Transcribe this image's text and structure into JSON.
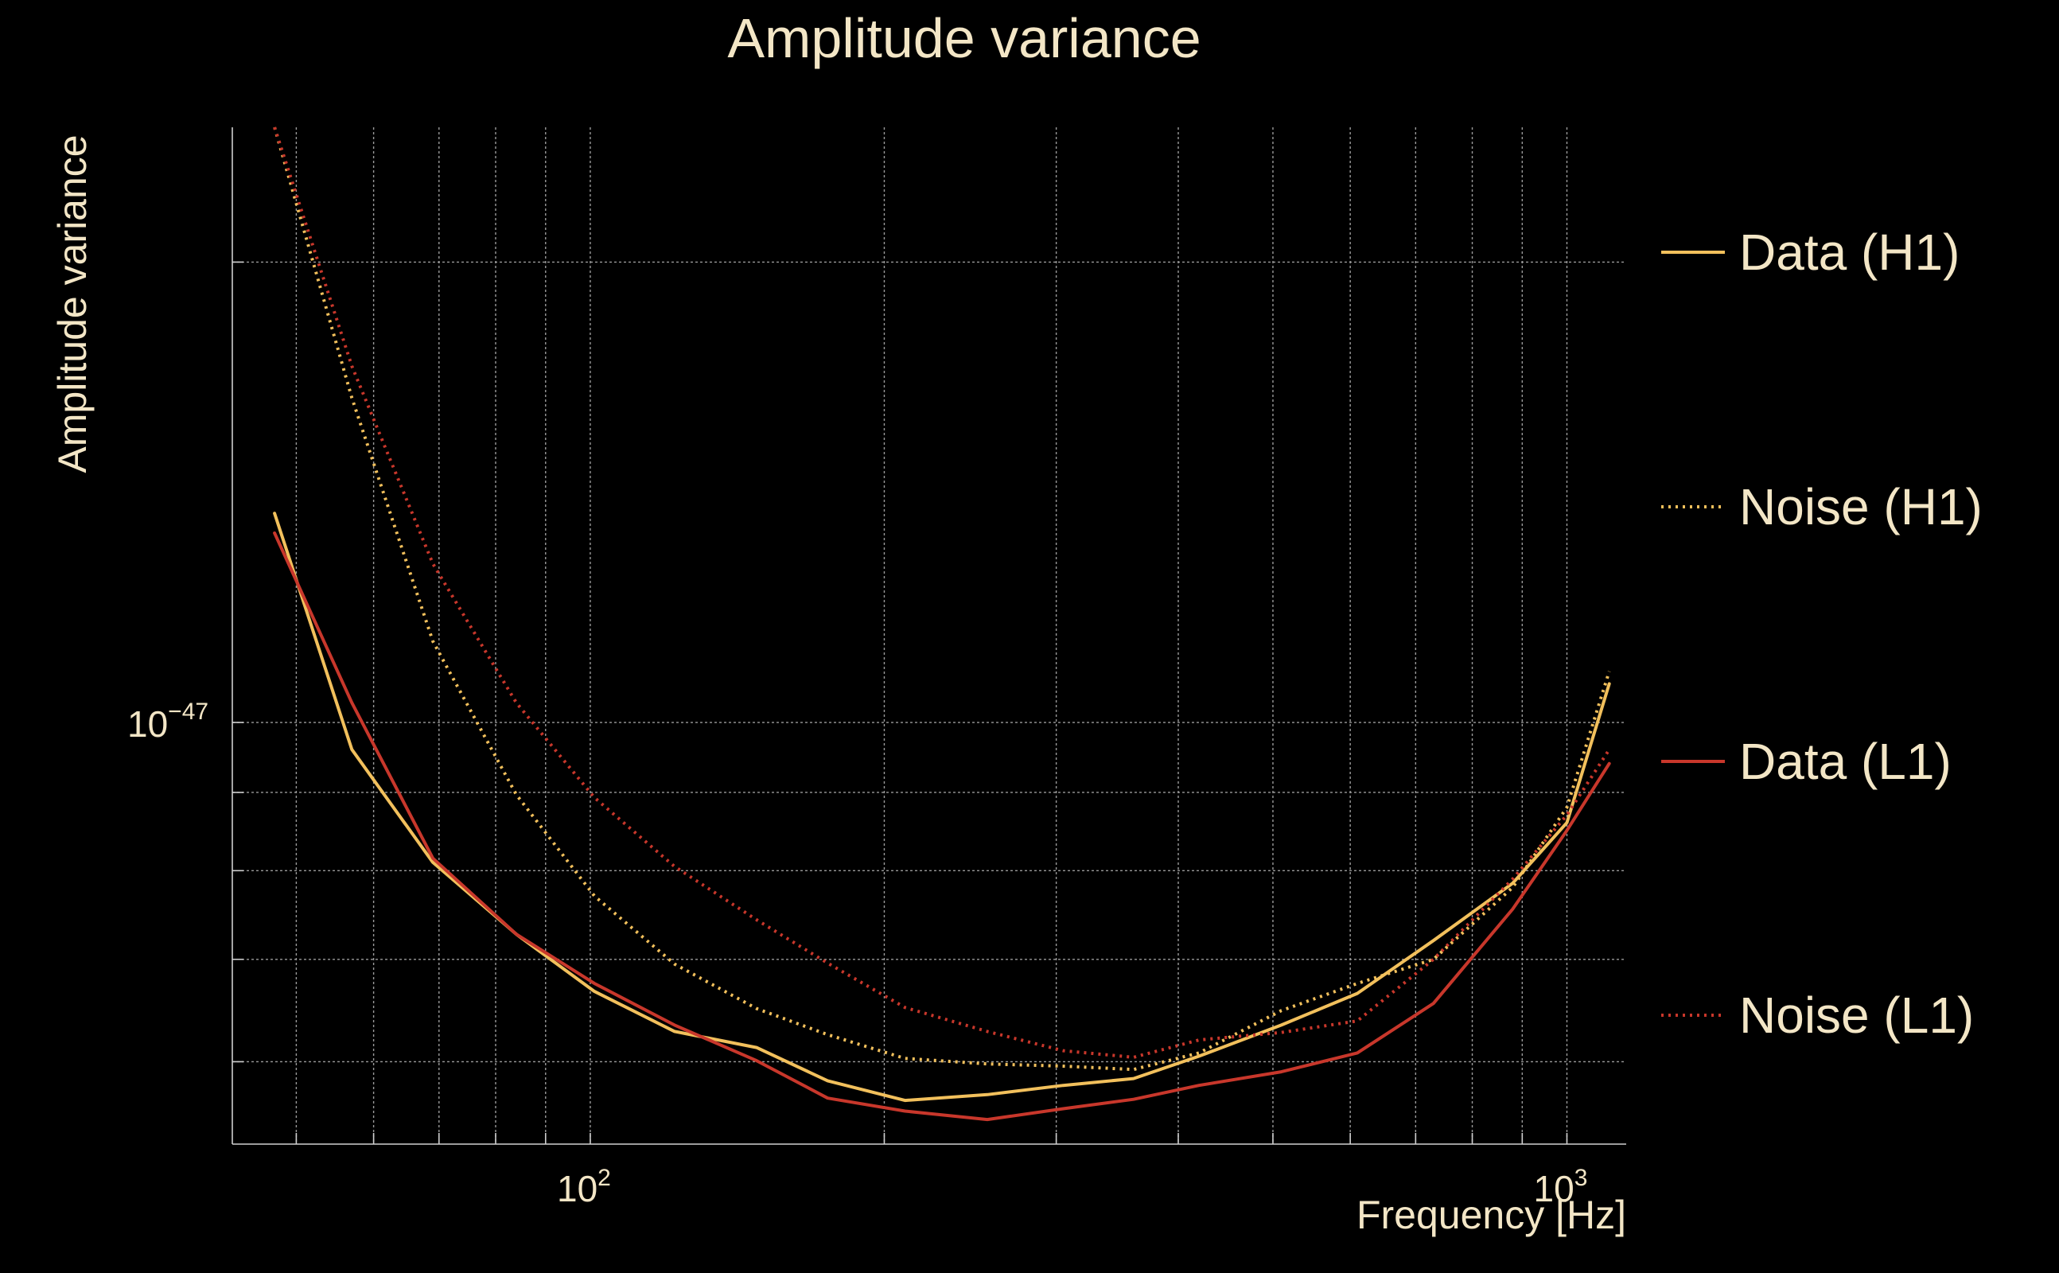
{
  "chart_data": {
    "type": "line",
    "title": "Amplitude variance",
    "xlabel": "Frequency [Hz]",
    "ylabel": "Amplitude variance",
    "xscale": "log",
    "yscale": "log",
    "xlim": [
      43,
      1150
    ],
    "ylim": [
      5.3e-48,
      2.45e-47
    ],
    "grid": true,
    "legend_position": "right",
    "x_tick_labels": [
      {
        "value": 100,
        "base": "10",
        "exp": "2"
      },
      {
        "value": 1000,
        "base": "10",
        "exp": "3"
      }
    ],
    "y_tick_labels": [
      {
        "value": 1e-47,
        "base": "10",
        "exp": "−47"
      }
    ],
    "x_minor_ticks": [
      50,
      60,
      70,
      80,
      90,
      200,
      300,
      400,
      500,
      600,
      700,
      800,
      900
    ],
    "y_minor_ticks": [
      6e-48,
      7e-48,
      8e-48,
      9e-48,
      2e-47
    ],
    "x": [
      47.5,
      57,
      69,
      84,
      101,
      122,
      148,
      175,
      210,
      255,
      305,
      360,
      420,
      510,
      610,
      730,
      880,
      1000,
      1105
    ],
    "series": [
      {
        "name": "Data (H1)",
        "color": "#f2c05c",
        "style": "solid",
        "values": [
          1.37e-47,
          9.6e-48,
          8.1e-48,
          7.27e-48,
          6.67e-48,
          6.28e-48,
          6.13e-48,
          5.83e-48,
          5.66e-48,
          5.71e-48,
          5.79e-48,
          5.85e-48,
          6.05e-48,
          6.34e-48,
          6.65e-48,
          7.2e-48,
          7.85e-48,
          8.6e-48,
          1.06e-47
        ]
      },
      {
        "name": "Noise (H1)",
        "color": "#f2c05c",
        "style": "dotted",
        "values": [
          2.45e-47,
          1.63e-47,
          1.13e-47,
          8.97e-48,
          7.7e-48,
          6.95e-48,
          6.5e-48,
          6.25e-48,
          6.03e-48,
          5.98e-48,
          5.96e-48,
          5.93e-48,
          6.08e-48,
          6.48e-48,
          6.75e-48,
          7e-48,
          7.8e-48,
          8.8e-48,
          1.08e-47
        ]
      },
      {
        "name": "Data (L1)",
        "color": "#c8372b",
        "style": "solid",
        "values": [
          1.33e-47,
          1.03e-47,
          8.15e-48,
          7.27e-48,
          6.75e-48,
          6.34e-48,
          6.01e-48,
          5.68e-48,
          5.57e-48,
          5.5e-48,
          5.59e-48,
          5.67e-48,
          5.79e-48,
          5.91e-48,
          6.08e-48,
          6.55e-48,
          7.55e-48,
          8.5e-48,
          9.4e-48
        ]
      },
      {
        "name": "Noise (L1)",
        "color": "#c8372b",
        "style": "dotted",
        "values": [
          2.45e-47,
          1.71e-47,
          1.27e-47,
          1.03e-47,
          8.93e-48,
          8.05e-48,
          7.43e-48,
          6.96e-48,
          6.51e-48,
          6.28e-48,
          6.1e-48,
          6.04e-48,
          6.2e-48,
          6.27e-48,
          6.38e-48,
          7e-48,
          7.9e-48,
          8.7e-48,
          9.6e-48
        ]
      }
    ]
  }
}
